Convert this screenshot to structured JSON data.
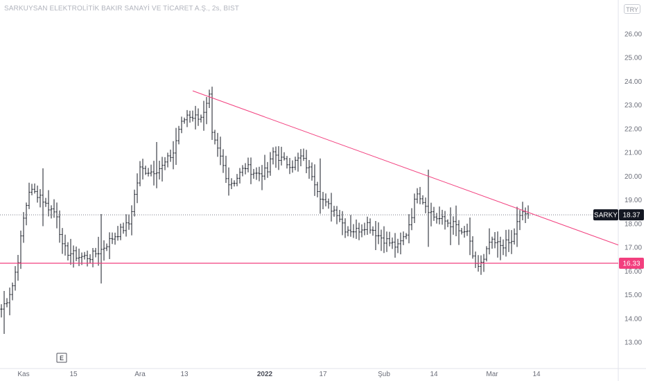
{
  "header": {
    "title": "SARKUYSAN ELEKTROLİTİK BAKIR SANAYİ VE TİCARET A.Ş., 2s, BIST",
    "currency": "TRY"
  },
  "event_marker": {
    "label": "E"
  },
  "colors": {
    "candle": "#131722",
    "trendline": "#f23f7e",
    "support": "#f23f7e",
    "last_price_line": "#787b86",
    "axis_text": "#6a6d78",
    "symbol_tag_bg": "#131722",
    "support_tag_bg": "#f23f7e"
  },
  "chart_data": {
    "type": "candlestick",
    "symbol": "SARKY",
    "last_price": "18.37",
    "support_label": "16.33",
    "support_level": 16.33,
    "ylim": [
      12.0,
      27.0
    ],
    "yticks": [
      "13.00",
      "14.00",
      "15.00",
      "16.00",
      "17.00",
      "18.00",
      "19.00",
      "20.00",
      "21.00",
      "22.00",
      "23.00",
      "24.00",
      "25.00",
      "26.00"
    ],
    "xlabels": [
      {
        "label": "Kas",
        "bar": 8,
        "bold": false
      },
      {
        "label": "15",
        "bar": 26,
        "bold": false
      },
      {
        "label": "Ara",
        "bar": 50,
        "bold": false
      },
      {
        "label": "13",
        "bar": 66,
        "bold": false
      },
      {
        "label": "2022",
        "bar": 95,
        "bold": true
      },
      {
        "label": "17",
        "bar": 116,
        "bold": false
      },
      {
        "label": "Şub",
        "bar": 138,
        "bold": false
      },
      {
        "label": "14",
        "bar": 156,
        "bold": false
      },
      {
        "label": "Mar",
        "bar": 177,
        "bold": false
      },
      {
        "label": "14",
        "bar": 193,
        "bold": false
      }
    ],
    "bar_count": 204,
    "anchors": [
      [
        0,
        14.4
      ],
      [
        2,
        14.8
      ],
      [
        4,
        15.4
      ],
      [
        6,
        16.5
      ],
      [
        8,
        18.2
      ],
      [
        10,
        19.4
      ],
      [
        14,
        19.2
      ],
      [
        16,
        18.8
      ],
      [
        20,
        18.4
      ],
      [
        22,
        17.0
      ],
      [
        24,
        16.8
      ],
      [
        28,
        16.6
      ],
      [
        32,
        16.6
      ],
      [
        36,
        16.9
      ],
      [
        40,
        17.4
      ],
      [
        44,
        17.8
      ],
      [
        46,
        18.0
      ],
      [
        48,
        19.2
      ],
      [
        50,
        20.3
      ],
      [
        54,
        20.2
      ],
      [
        58,
        20.4
      ],
      [
        62,
        21.0
      ],
      [
        64,
        22.0
      ],
      [
        67,
        22.6
      ],
      [
        70,
        22.5
      ],
      [
        73,
        22.6
      ],
      [
        75,
        23.3
      ],
      [
        76,
        21.7
      ],
      [
        79,
        20.8
      ],
      [
        82,
        19.7
      ],
      [
        84,
        19.8
      ],
      [
        88,
        20.4
      ],
      [
        92,
        20.1
      ],
      [
        96,
        20.2
      ],
      [
        98,
        21.0
      ],
      [
        102,
        20.6
      ],
      [
        105,
        20.5
      ],
      [
        108,
        20.8
      ],
      [
        112,
        20.1
      ],
      [
        115,
        19.2
      ],
      [
        117,
        18.8
      ],
      [
        121,
        18.5
      ],
      [
        124,
        17.8
      ],
      [
        128,
        17.7
      ],
      [
        132,
        18.0
      ],
      [
        136,
        17.5
      ],
      [
        140,
        17.2
      ],
      [
        143,
        17.0
      ],
      [
        146,
        17.6
      ],
      [
        148,
        18.4
      ],
      [
        150,
        19.4
      ],
      [
        153,
        18.8
      ],
      [
        156,
        18.3
      ],
      [
        160,
        18.1
      ],
      [
        164,
        17.9
      ],
      [
        166,
        17.5
      ],
      [
        168,
        17.7
      ],
      [
        170,
        16.5
      ],
      [
        172,
        16.2
      ],
      [
        174,
        16.4
      ],
      [
        176,
        17.2
      ],
      [
        180,
        17.1
      ],
      [
        184,
        17.2
      ],
      [
        186,
        18.0
      ],
      [
        188,
        18.5
      ],
      [
        190,
        18.37
      ]
    ],
    "trendline": {
      "from": [
        64,
        23.6
      ],
      "to": [
        204,
        17.1
      ]
    }
  }
}
